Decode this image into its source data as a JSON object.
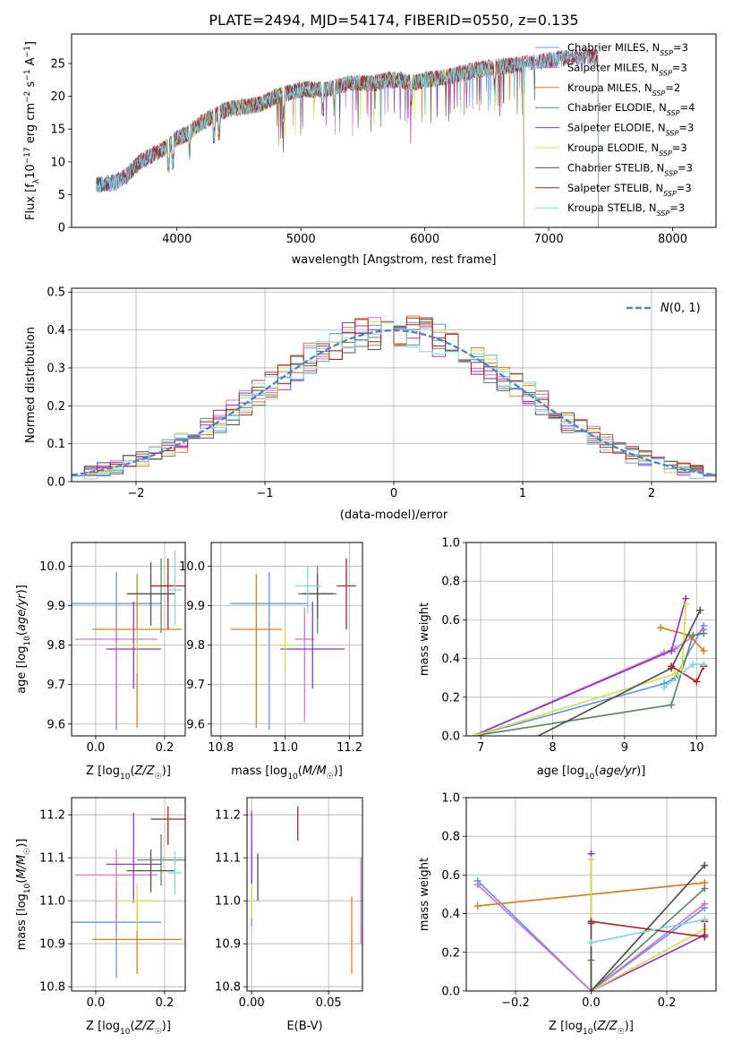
{
  "figure_title": "PLATE=2494, MJD=54174, FIBERID=0550, z=0.135",
  "colors": {
    "Chabrier MILES": "#6495ED",
    "Salpeter MILES": "#DA70D6",
    "Kroupa MILES": "#E07B20",
    "Chabrier ELODIE": "#5C8A66",
    "Salpeter ELODIE": "#9932CC",
    "Kroupa ELODIE": "#D4E04A",
    "Chabrier STELIB": "#505050",
    "Salpeter STELIB": "#B22222",
    "Kroupa STELIB": "#7FD8E0"
  },
  "chart_data": [
    {
      "id": "spectrum",
      "type": "line",
      "xlabel": "wavelength [Angstrom, rest frame]",
      "ylabel": "Flux [f_λ10^-17 erg cm^-2 s^-1 A^-1]",
      "xlim": [
        3150,
        8350
      ],
      "ylim": [
        0,
        29.5
      ],
      "xticks": [
        4000,
        5000,
        6000,
        7000,
        8000
      ],
      "yticks": [
        0,
        5,
        10,
        15,
        20,
        25
      ],
      "grid": false,
      "legend_position": "right",
      "data": {
        "x": [
          3350,
          3500,
          3600,
          3700,
          3800,
          3900,
          4000,
          4100,
          4200,
          4300,
          4400,
          4500,
          4600,
          4700,
          4800,
          4900,
          5000,
          5100,
          5200,
          5300,
          5400,
          5500,
          5600,
          5700,
          5800,
          5900,
          6000,
          6200,
          6400,
          6600,
          6800,
          7000,
          7200,
          7400
        ],
        "y": [
          6.5,
          6.8,
          8.0,
          10.0,
          11.0,
          12.0,
          13.5,
          14.5,
          16.0,
          17.0,
          18.0,
          18.3,
          18.5,
          19.0,
          20.0,
          20.5,
          21.0,
          21.0,
          21.0,
          21.5,
          22.0,
          22.0,
          22.0,
          22.5,
          22.5,
          22.0,
          22.5,
          23.0,
          24.0,
          24.5,
          25.0,
          25.5,
          26.0,
          26.0
        ]
      },
      "series": [
        {
          "name": "Chabrier MILES, N_SSP=3",
          "label_main": "Chabrier MILES, N",
          "label_sub": "SSP",
          "label_tail": "=3",
          "x_range": [
            3350,
            7400
          ]
        },
        {
          "name": "Salpeter MILES, N_SSP=3",
          "label_main": "Salpeter MILES, N",
          "label_sub": "SSP",
          "label_tail": "=3",
          "x_range": [
            3350,
            7400
          ]
        },
        {
          "name": "Kroupa MILES, N_SSP=2",
          "label_main": "Kroupa MILES, N",
          "label_sub": "SSP",
          "label_tail": "=2",
          "x_range": [
            3350,
            6800
          ]
        },
        {
          "name": "Chabrier ELODIE, N_SSP=4",
          "label_main": "Chabrier ELODIE, N",
          "label_sub": "SSP",
          "label_tail": "=4",
          "x_range": [
            3350,
            6800
          ]
        },
        {
          "name": "Salpeter ELODIE, N_SSP=3",
          "label_main": "Salpeter ELODIE, N",
          "label_sub": "SSP",
          "label_tail": "=3",
          "x_range": [
            3350,
            6800
          ]
        },
        {
          "name": "Kroupa ELODIE, N_SSP=3",
          "label_main": "Kroupa ELODIE, N",
          "label_sub": "SSP",
          "label_tail": "=3",
          "x_range": [
            3900,
            6800
          ]
        },
        {
          "name": "Chabrier STELIB, N_SSP=3",
          "label_main": "Chabrier STELIB, N",
          "label_sub": "SSP",
          "label_tail": "=3",
          "x_range": [
            3350,
            7400
          ]
        },
        {
          "name": "Salpeter STELIB, N_SSP=3",
          "label_main": "Salpeter STELIB, N",
          "label_sub": "SSP",
          "label_tail": "=3",
          "x_range": [
            3550,
            7400
          ]
        },
        {
          "name": "Kroupa STELIB, N_SSP=3",
          "label_main": "Kroupa STELIB, N",
          "label_sub": "SSP",
          "label_tail": "=3",
          "x_range": [
            3350,
            7400
          ]
        }
      ]
    },
    {
      "id": "residuals",
      "type": "histogram",
      "xlabel": "(data-model)/error",
      "ylabel": "Normed distribution",
      "xlim": [
        -2.5,
        2.5
      ],
      "ylim": [
        0,
        0.51
      ],
      "xticks": [
        -2,
        -1,
        0,
        1,
        2
      ],
      "yticks": [
        0.0,
        0.1,
        0.2,
        0.3,
        0.4,
        0.5
      ],
      "grid": true,
      "legend_position": "top-right",
      "legend": "N(0,1)",
      "bin_width": 0.1,
      "bin_start": -2.5,
      "gaussian": {
        "mean": 0,
        "sigma": 1
      }
    },
    {
      "id": "age-vs-Z",
      "type": "errorbar",
      "xlabel": "Z [log10(Z/Z☉)]",
      "ylabel": "age [log10(age/yr)]",
      "xlim": [
        -0.07,
        0.26
      ],
      "ylim": [
        9.57,
        10.06
      ],
      "xticks": [
        0.0,
        0.2
      ],
      "yticks": [
        9.6,
        9.7,
        9.8,
        9.9,
        10.0
      ],
      "grid": true,
      "points": [
        {
          "series": "Chabrier MILES",
          "x": 0.06,
          "xerr": 0.13,
          "y": 9.905,
          "yerr": [
            0.32,
            0.08
          ]
        },
        {
          "series": "Salpeter MILES",
          "x": 0.06,
          "xerr": 0.12,
          "y": 9.815,
          "yerr": [
            0.21,
            0.08
          ]
        },
        {
          "series": "Kroupa MILES",
          "x": 0.12,
          "xerr": 0.13,
          "y": 9.84,
          "yerr": [
            0.25,
            0.14
          ]
        },
        {
          "series": "Chabrier ELODIE",
          "x": 0.19,
          "xerr": 0.03,
          "y": 9.95,
          "yerr": [
            0.12,
            0.07
          ]
        },
        {
          "series": "Salpeter ELODIE",
          "x": 0.11,
          "xerr": 0.08,
          "y": 9.79,
          "yerr": [
            0.1,
            0.12
          ]
        },
        {
          "series": "Kroupa ELODIE",
          "x": 0.12,
          "xerr": 0.06,
          "y": 9.8,
          "yerr": [
            0.07,
            0.04
          ]
        },
        {
          "series": "Chabrier STELIB",
          "x": 0.16,
          "xerr": 0.07,
          "y": 9.93,
          "yerr": [
            0.08,
            0.08
          ]
        },
        {
          "series": "Salpeter STELIB",
          "x": 0.21,
          "xerr": 0.05,
          "y": 9.95,
          "yerr": [
            0.11,
            0.07
          ]
        },
        {
          "series": "Kroupa STELIB",
          "x": 0.23,
          "xerr": 0.02,
          "y": 9.94,
          "yerr": [
            0.09,
            0.1
          ]
        }
      ]
    },
    {
      "id": "age-vs-mass",
      "type": "errorbar",
      "xlabel": "mass [log10(M/M☉)]",
      "ylabel": "",
      "xlim": [
        10.77,
        11.24
      ],
      "ylim": [
        9.57,
        10.06
      ],
      "xticks": [
        10.8,
        11.0,
        11.2
      ],
      "yticks": [
        9.6,
        9.7,
        9.8,
        9.9,
        10.0
      ],
      "grid": true,
      "points": [
        {
          "series": "Chabrier MILES",
          "x": 10.95,
          "xerr": 0.12,
          "y": 9.905,
          "yerr": [
            0.32,
            0.08
          ]
        },
        {
          "series": "Salpeter MILES",
          "x": 11.06,
          "xerr": 0.03,
          "y": 9.815,
          "yerr": [
            0.21,
            0.08
          ]
        },
        {
          "series": "Kroupa MILES",
          "x": 10.91,
          "xerr": 0.08,
          "y": 9.84,
          "yerr": [
            0.25,
            0.14
          ]
        },
        {
          "series": "Chabrier ELODIE",
          "x": 11.1,
          "xerr": 0.06,
          "y": 9.93,
          "yerr": [
            0.1,
            0.07
          ]
        },
        {
          "series": "Salpeter ELODIE",
          "x": 11.085,
          "xerr": 0.1,
          "y": 9.79,
          "yerr": [
            0.1,
            0.12
          ]
        },
        {
          "series": "Kroupa ELODIE",
          "x": 11.0,
          "xerr": 0.03,
          "y": 9.8,
          "yerr": [
            0.07,
            0.04
          ]
        },
        {
          "series": "Chabrier STELIB",
          "x": 11.1,
          "xerr": 0.05,
          "y": 9.93,
          "yerr": [
            0.06,
            0.05
          ]
        },
        {
          "series": "Salpeter STELIB",
          "x": 11.19,
          "xerr": 0.03,
          "y": 9.95,
          "yerr": [
            0.11,
            0.07
          ]
        },
        {
          "series": "Kroupa STELIB",
          "x": 11.07,
          "xerr": 0.04,
          "y": 9.95,
          "yerr": [
            0.07,
            0.05
          ]
        }
      ]
    },
    {
      "id": "weight-vs-age",
      "type": "line",
      "xlabel": "age [log10(age/yr)]",
      "ylabel": "mass weight",
      "xlim": [
        6.8,
        10.27
      ],
      "ylim": [
        0.0,
        1.0
      ],
      "xticks": [
        7,
        8,
        9,
        10
      ],
      "yticks": [
        0.0,
        0.2,
        0.4,
        0.6,
        0.8,
        1.0
      ],
      "grid": true,
      "series": [
        {
          "series": "Chabrier MILES",
          "x": [
            6.9,
            9.55,
            9.7,
            10.1
          ],
          "y": [
            0.0,
            0.27,
            0.3,
            0.57
          ]
        },
        {
          "series": "Salpeter MILES",
          "x": [
            6.9,
            9.55,
            9.7,
            10.1
          ],
          "y": [
            0.0,
            0.43,
            0.45,
            0.55
          ]
        },
        {
          "series": "Kroupa MILES",
          "x": [
            9.5,
            9.9,
            10.1
          ],
          "y": [
            0.56,
            0.52,
            0.44
          ]
        },
        {
          "series": "Chabrier ELODIE",
          "x": [
            6.9,
            9.65,
            9.95,
            10.1
          ],
          "y": [
            0.0,
            0.16,
            0.52,
            0.53
          ]
        },
        {
          "series": "Salpeter ELODIE",
          "x": [
            6.9,
            9.65,
            9.85
          ],
          "y": [
            0.0,
            0.44,
            0.71
          ]
        },
        {
          "series": "Kroupa ELODIE",
          "x": [
            6.9,
            9.7,
            9.8,
            9.85
          ],
          "y": [
            0.0,
            0.32,
            0.35,
            0.68
          ]
        },
        {
          "series": "Chabrier STELIB",
          "x": [
            7.8,
            9.65,
            10.05
          ],
          "y": [
            0.0,
            0.35,
            0.65
          ]
        },
        {
          "series": "Salpeter STELIB",
          "x": [
            9.65,
            10.0,
            10.1
          ],
          "y": [
            0.36,
            0.28,
            0.36
          ]
        },
        {
          "series": "Kroupa STELIB",
          "x": [
            9.55,
            9.95,
            10.1
          ],
          "y": [
            0.25,
            0.37,
            0.37
          ]
        }
      ]
    },
    {
      "id": "mass-vs-Z",
      "type": "errorbar",
      "xlabel": "Z [log10(Z/Z☉)]",
      "ylabel": "mass [log10(M/M☉)]",
      "xlim": [
        -0.07,
        0.26
      ],
      "ylim": [
        10.79,
        11.24
      ],
      "xticks": [
        0.0,
        0.2
      ],
      "yticks": [
        10.8,
        10.9,
        11.0,
        11.1,
        11.2
      ],
      "grid": true,
      "points": [
        {
          "series": "Chabrier MILES",
          "x": 0.06,
          "xerr": 0.13,
          "y": 10.95,
          "yerr": [
            0.13,
            0.08
          ]
        },
        {
          "series": "Salpeter MILES",
          "x": 0.06,
          "xerr": 0.12,
          "y": 11.06,
          "yerr": [
            0.13,
            0.06
          ]
        },
        {
          "series": "Kroupa MILES",
          "x": 0.12,
          "xerr": 0.13,
          "y": 10.91,
          "yerr": [
            0.08,
            0.09
          ]
        },
        {
          "series": "Chabrier ELODIE",
          "x": 0.19,
          "xerr": 0.07,
          "y": 11.095,
          "yerr": [
            0.06,
            0.06
          ]
        },
        {
          "series": "Salpeter ELODIE",
          "x": 0.11,
          "xerr": 0.08,
          "y": 11.085,
          "yerr": [
            0.09,
            0.12
          ]
        },
        {
          "series": "Kroupa ELODIE",
          "x": 0.12,
          "xerr": 0.06,
          "y": 11.0,
          "yerr": [
            0.07,
            0.04
          ]
        },
        {
          "series": "Chabrier STELIB",
          "x": 0.16,
          "xerr": 0.07,
          "y": 11.07,
          "yerr": [
            0.05,
            0.05
          ]
        },
        {
          "series": "Salpeter STELIB",
          "x": 0.21,
          "xerr": 0.05,
          "y": 11.19,
          "yerr": [
            0.06,
            0.03
          ]
        },
        {
          "series": "Kroupa STELIB",
          "x": 0.23,
          "xerr": 0.02,
          "y": 11.065,
          "yerr": [
            0.05,
            0.05
          ]
        }
      ]
    },
    {
      "id": "mass-vs-EBV",
      "type": "errorbar",
      "xlabel": "E(B-V)",
      "ylabel": "",
      "xlim": [
        -0.003,
        0.072
      ],
      "ylim": [
        10.79,
        11.24
      ],
      "xticks": [
        0.0,
        0.05
      ],
      "yticks": [
        10.8,
        10.9,
        11.0,
        11.1,
        11.2
      ],
      "grid": true,
      "points": [
        {
          "series": "Chabrier MILES",
          "x": 0.0,
          "xerr": 0.0,
          "y": 11.0,
          "yerr": [
            0.06,
            0.06
          ]
        },
        {
          "series": "Salpeter MILES",
          "x": 0.071,
          "xerr": 0.0,
          "y": 11.0,
          "yerr": [
            0.1,
            0.1
          ]
        },
        {
          "series": "Kroupa MILES",
          "x": 0.065,
          "xerr": 0.0,
          "y": 10.93,
          "yerr": [
            0.1,
            0.08
          ]
        },
        {
          "series": "Chabrier ELODIE",
          "x": 0.0,
          "xerr": 0.0,
          "y": 11.09,
          "yerr": [
            0.05,
            0.05
          ]
        },
        {
          "series": "Salpeter ELODIE",
          "x": 0.0,
          "xerr": 0.0,
          "y": 11.12,
          "yerr": [
            0.08,
            0.09
          ]
        },
        {
          "series": "Kroupa ELODIE",
          "x": 0.0,
          "xerr": 0.0,
          "y": 11.0,
          "yerr": [
            0.04,
            0.04
          ]
        },
        {
          "series": "Chabrier STELIB",
          "x": 0.004,
          "xerr": 0.0,
          "y": 11.06,
          "yerr": [
            0.06,
            0.05
          ]
        },
        {
          "series": "Salpeter STELIB",
          "x": 0.03,
          "xerr": 0.0,
          "y": 11.18,
          "yerr": [
            0.04,
            0.04
          ]
        },
        {
          "series": "Kroupa STELIB",
          "x": 0.072,
          "xerr": 0.0,
          "y": 10.88,
          "yerr": [
            0.06,
            0.06
          ]
        }
      ]
    },
    {
      "id": "weight-vs-Z",
      "type": "line",
      "xlabel": "Z [log10(Z/Z☉)]",
      "ylabel": "mass weight",
      "xlim": [
        -0.33,
        0.33
      ],
      "ylim": [
        0.0,
        1.0
      ],
      "xticks": [
        -0.2,
        0.0,
        0.2
      ],
      "yticks": [
        0.0,
        0.2,
        0.4,
        0.6,
        0.8,
        1.0
      ],
      "grid": true,
      "series": [
        {
          "series": "Chabrier MILES",
          "x": [
            -0.3,
            0.0,
            0.3
          ],
          "y": [
            0.57,
            0.0,
            0.43
          ]
        },
        {
          "series": "Salpeter MILES",
          "x": [
            -0.3,
            0.0,
            0.3
          ],
          "y": [
            0.55,
            0.0,
            0.45
          ]
        },
        {
          "series": "Kroupa MILES",
          "x": [
            -0.3,
            0.3
          ],
          "y": [
            0.44,
            0.56
          ]
        },
        {
          "series": "Chabrier ELODIE",
          "x": [
            0.0,
            0.0,
            0.3
          ],
          "y": [
            0.16,
            0.0,
            0.53
          ]
        },
        {
          "series": "Salpeter ELODIE",
          "x": [
            0.0,
            0.0,
            0.3
          ],
          "y": [
            0.71,
            0.0,
            0.29
          ]
        },
        {
          "series": "Kroupa ELODIE",
          "x": [
            0.0,
            0.0,
            0.3
          ],
          "y": [
            0.68,
            0.0,
            0.32
          ]
        },
        {
          "series": "Chabrier STELIB",
          "x": [
            0.0,
            0.0,
            0.3
          ],
          "y": [
            0.35,
            0.0,
            0.65
          ]
        },
        {
          "series": "Salpeter STELIB",
          "x": [
            0.0,
            0.3,
            0.3
          ],
          "y": [
            0.36,
            0.28,
            0.36
          ]
        },
        {
          "series": "Kroupa STELIB",
          "x": [
            0.0,
            0.3
          ],
          "y": [
            0.25,
            0.37
          ]
        }
      ]
    }
  ]
}
